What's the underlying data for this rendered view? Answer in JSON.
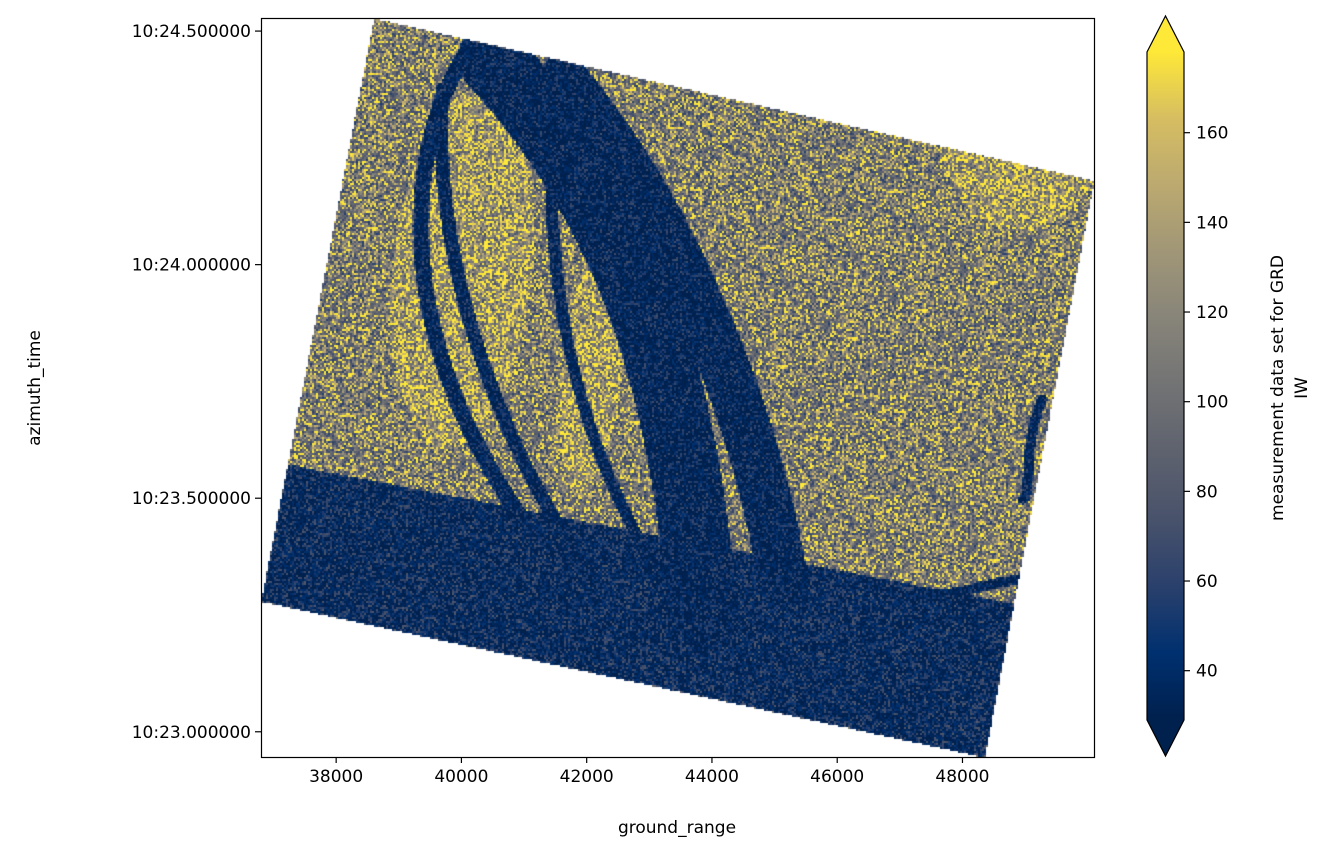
{
  "chart_data": {
    "type": "heatmap",
    "title": "",
    "xlabel": "ground_range",
    "ylabel": "azimuth_time",
    "xlim": [
      36800,
      50100
    ],
    "ylim_seconds_of_10_23": [
      -0.054,
      1.528
    ],
    "xticks": [
      38000,
      40000,
      42000,
      44000,
      46000,
      48000
    ],
    "xtick_labels": [
      "38000",
      "40000",
      "42000",
      "44000",
      "46000",
      "48000"
    ],
    "yticks": [
      1.5,
      1.0,
      0.5,
      0.0
    ],
    "ytick_labels": [
      "10:24.500000",
      "10:24.000000",
      "10:23.500000",
      "10:23.000000"
    ],
    "colormap": "cividis",
    "clim": [
      29,
      178
    ],
    "extend": "both",
    "colorbar": {
      "label_line1": "measurement data set for GRD",
      "label_line2": "IW",
      "ticks": [
        40,
        60,
        80,
        100,
        120,
        140,
        160
      ],
      "tick_labels": [
        "40",
        "60",
        "80",
        "100",
        "120",
        "140",
        "160"
      ]
    },
    "footprint_corners": [
      [
        38600,
        1.528
      ],
      [
        50100,
        1.18
      ],
      [
        48350,
        -0.054
      ],
      [
        36800,
        0.28
      ]
    ],
    "grid": false
  }
}
